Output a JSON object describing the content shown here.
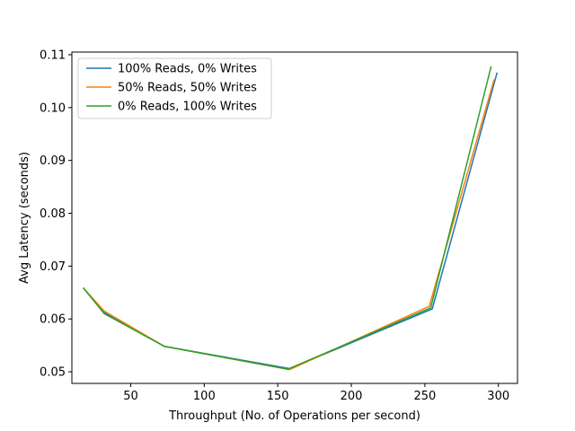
{
  "chart_data": {
    "type": "line",
    "title": "",
    "xlabel": "Throughput (No. of Operations per second)",
    "ylabel": "Avg Latency (seconds)",
    "xlim": [
      10,
      313
    ],
    "ylim": [
      0.0478,
      0.1105
    ],
    "xticks": [
      50,
      100,
      150,
      200,
      250,
      300
    ],
    "yticks": [
      0.05,
      0.06,
      0.07,
      0.08,
      0.09,
      0.1,
      0.11
    ],
    "ytick_labels": [
      "0.05",
      "0.06",
      "0.07",
      "0.08",
      "0.09",
      "0.10",
      "0.11"
    ],
    "grid": false,
    "legend_position": "top-left",
    "series": [
      {
        "name": "100% Reads, 0% Writes",
        "color": "#1f77b4",
        "x": [
          18,
          32,
          73,
          158,
          255,
          299
        ],
        "y": [
          0.0658,
          0.0612,
          0.0548,
          0.0506,
          0.0619,
          0.1065
        ]
      },
      {
        "name": "50% Reads, 50% Writes",
        "color": "#ff7f0e",
        "x": [
          18,
          32,
          73,
          158,
          253,
          297
        ],
        "y": [
          0.0658,
          0.0615,
          0.0548,
          0.0504,
          0.0624,
          0.1052
        ]
      },
      {
        "name": "0% Reads, 100% Writes",
        "color": "#2ca02c",
        "x": [
          18,
          32,
          73,
          157,
          254,
          295
        ],
        "y": [
          0.0658,
          0.061,
          0.0548,
          0.0505,
          0.0621,
          0.1077
        ]
      }
    ]
  }
}
